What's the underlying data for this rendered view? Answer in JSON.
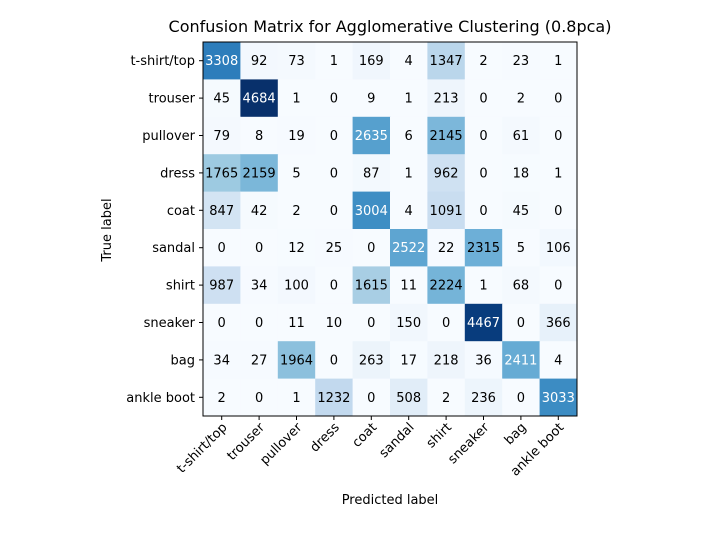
{
  "chart_data": {
    "type": "heatmap",
    "title": "Confusion Matrix for Agglomerative Clustering (0.8pca)",
    "xlabel": "Predicted label",
    "ylabel": "True label",
    "x_categories": [
      "t-shirt/top",
      "trouser",
      "pullover",
      "dress",
      "coat",
      "sandal",
      "shirt",
      "sneaker",
      "bag",
      "ankle boot"
    ],
    "y_categories": [
      "t-shirt/top",
      "trouser",
      "pullover",
      "dress",
      "coat",
      "sandal",
      "shirt",
      "sneaker",
      "bag",
      "ankle boot"
    ],
    "values": [
      [
        3308,
        92,
        73,
        1,
        169,
        4,
        1347,
        2,
        23,
        1
      ],
      [
        45,
        4684,
        1,
        0,
        9,
        1,
        213,
        0,
        2,
        0
      ],
      [
        79,
        8,
        19,
        0,
        2635,
        6,
        2145,
        0,
        61,
        0
      ],
      [
        1765,
        2159,
        5,
        0,
        87,
        1,
        962,
        0,
        18,
        1
      ],
      [
        847,
        42,
        2,
        0,
        3004,
        4,
        1091,
        0,
        45,
        0
      ],
      [
        0,
        0,
        12,
        25,
        0,
        2522,
        22,
        2315,
        5,
        106
      ],
      [
        987,
        34,
        100,
        0,
        1615,
        11,
        2224,
        1,
        68,
        0
      ],
      [
        0,
        0,
        11,
        10,
        0,
        150,
        0,
        4467,
        0,
        366
      ],
      [
        34,
        27,
        1964,
        0,
        263,
        17,
        218,
        36,
        2411,
        4
      ],
      [
        2,
        0,
        1,
        1232,
        0,
        508,
        2,
        236,
        0,
        3033
      ]
    ],
    "colormap": "Blues",
    "colormap_stops": [
      "#f7fbff",
      "#deebf7",
      "#c6dbef",
      "#9ecae1",
      "#6baed6",
      "#4292c6",
      "#2171b5",
      "#08519c",
      "#08306b"
    ],
    "text_color_light": "#ffffff",
    "text_color_dark": "#000000",
    "grid": false
  }
}
